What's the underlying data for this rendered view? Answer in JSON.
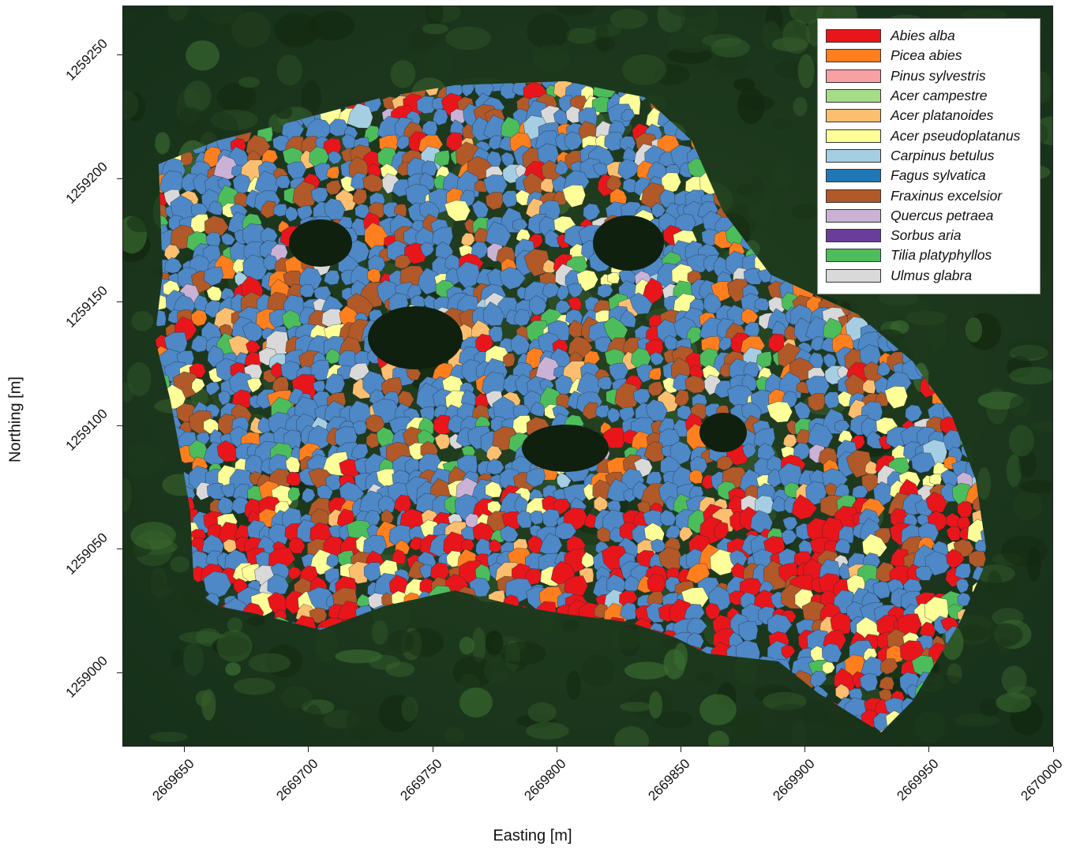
{
  "map": {
    "xlabel": "Easting [m]",
    "ylabel": "Northing [m]",
    "x_ticks": [
      "2669650",
      "2669700",
      "2669750",
      "2669800",
      "2669850",
      "2669900",
      "2669950",
      "2670000"
    ],
    "y_ticks": [
      "1259000",
      "1259050",
      "1259100",
      "1259150",
      "1259200",
      "1259250"
    ],
    "x_range": [
      2669625,
      2670000
    ],
    "y_range": [
      1258970,
      1259270
    ],
    "background_color": "#1f3a1d",
    "legend_placement": "top-right",
    "dominant_species_color": "#4f88c6"
  },
  "legend": {
    "items": [
      {
        "label": "Abies alba",
        "color": "#e8161b"
      },
      {
        "label": "Picea abies",
        "color": "#ff7f1f"
      },
      {
        "label": "Pinus sylvestris",
        "color": "#f8a0a4"
      },
      {
        "label": "Acer campestre",
        "color": "#a6dc86"
      },
      {
        "label": "Acer platanoides",
        "color": "#fdbf6f"
      },
      {
        "label": "Acer pseudoplatanus",
        "color": "#ffff99"
      },
      {
        "label": "Carpinus betulus",
        "color": "#a6cee3"
      },
      {
        "label": "Fagus sylvatica",
        "color": "#1f78b4"
      },
      {
        "label": "Fraxinus excelsior",
        "color": "#b15928"
      },
      {
        "label": "Quercus petraea",
        "color": "#cab2d6"
      },
      {
        "label": "Sorbus aria",
        "color": "#6a3d9a"
      },
      {
        "label": "Tilia platyphyllos",
        "color": "#4dbd5c"
      },
      {
        "label": "Ulmus glabra",
        "color": "#d9d9d9"
      }
    ]
  }
}
